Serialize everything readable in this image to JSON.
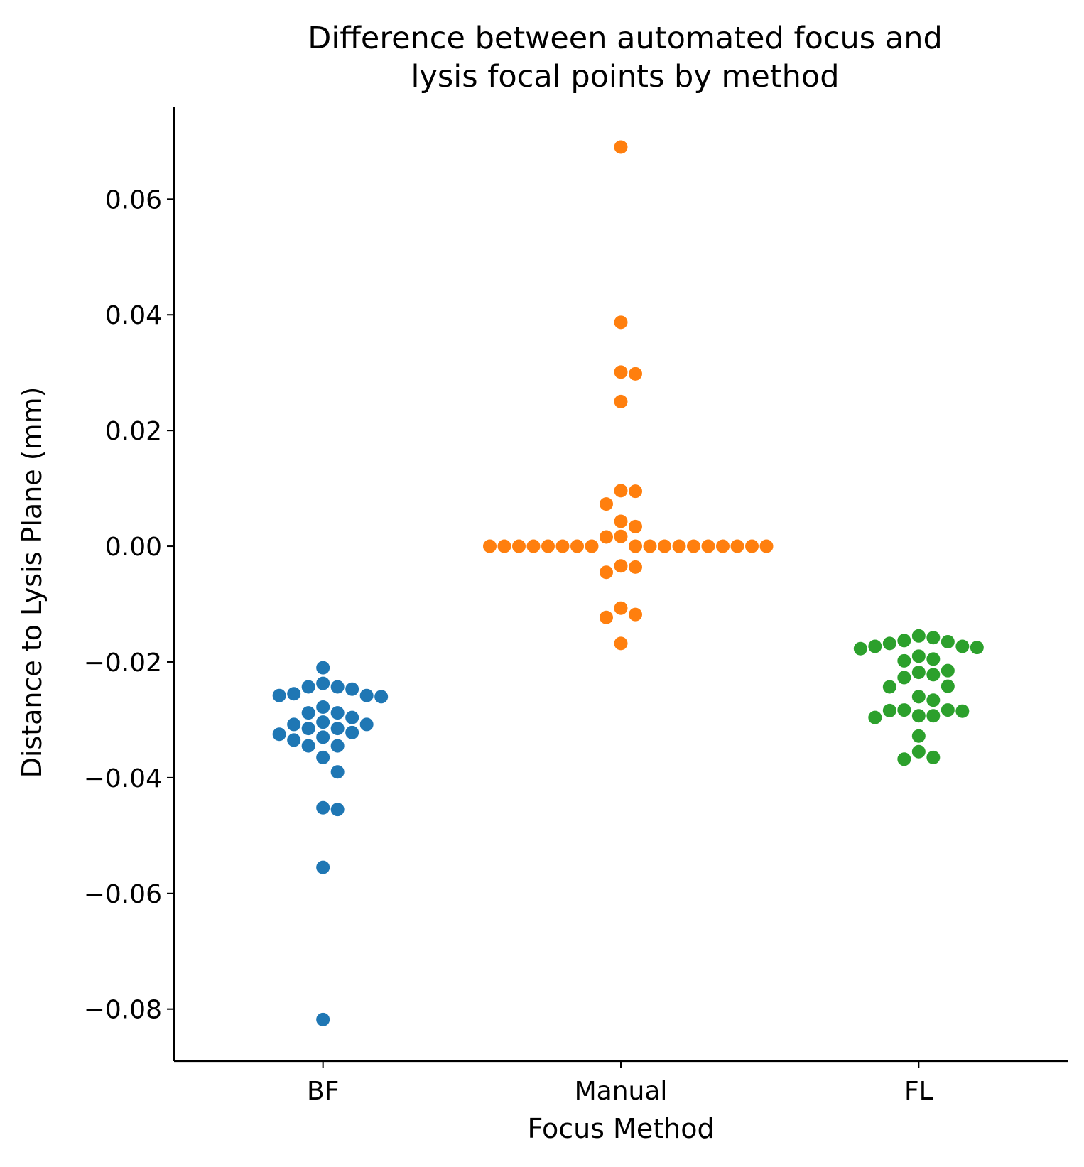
{
  "chart_data": {
    "type": "scatter",
    "style": "swarm",
    "title_lines": [
      "Difference between automated focus and",
      "lysis focal points by method"
    ],
    "xlabel": "Focus Method",
    "ylabel": "Distance to Lysis Plane (mm)",
    "categories": [
      "BF",
      "Manual",
      "FL"
    ],
    "ylim": [
      -0.089,
      0.076
    ],
    "yticks": [
      -0.08,
      -0.06,
      -0.04,
      -0.02,
      0.0,
      0.02,
      0.04,
      0.06
    ],
    "ytick_labels": [
      "−0.08",
      "−0.06",
      "−0.04",
      "−0.02",
      "0.00",
      "0.02",
      "0.04",
      "0.06"
    ],
    "grid": false,
    "legend": "none",
    "series": [
      {
        "category": "BF",
        "color": "#1f77b4",
        "values": [
          -0.021,
          -0.0237,
          -0.0243,
          -0.0243,
          -0.0247,
          -0.0255,
          -0.0258,
          -0.0258,
          -0.026,
          -0.0278,
          -0.0288,
          -0.0288,
          -0.0296,
          -0.0304,
          -0.0308,
          -0.0308,
          -0.0315,
          -0.0315,
          -0.0322,
          -0.0325,
          -0.033,
          -0.0335,
          -0.0345,
          -0.0345,
          -0.0365,
          -0.039,
          -0.0452,
          -0.0455,
          -0.0555,
          -0.0818
        ]
      },
      {
        "category": "Manual",
        "color": "#ff7f0e",
        "values": [
          0.069,
          0.0387,
          0.0301,
          0.0298,
          0.025,
          0.0096,
          0.0095,
          0.0073,
          0.0043,
          0.0034,
          0.0016,
          0.0017,
          0.0,
          0.0,
          0.0,
          0.0,
          0.0,
          0.0,
          0.0,
          0.0,
          0.0,
          0.0,
          0.0,
          0.0,
          0.0,
          0.0,
          0.0,
          0.0,
          0.0,
          0.0,
          -0.0034,
          -0.0036,
          -0.0045,
          -0.0107,
          -0.0118,
          -0.0123,
          -0.0168
        ]
      },
      {
        "category": "FL",
        "color": "#2ca02c",
        "values": [
          -0.0155,
          -0.0158,
          -0.0163,
          -0.0165,
          -0.0168,
          -0.0173,
          -0.0173,
          -0.0175,
          -0.0177,
          -0.019,
          -0.0195,
          -0.0198,
          -0.0215,
          -0.0218,
          -0.0222,
          -0.0227,
          -0.0242,
          -0.0243,
          -0.026,
          -0.0266,
          -0.0283,
          -0.0283,
          -0.0284,
          -0.0285,
          -0.0293,
          -0.0293,
          -0.0296,
          -0.0328,
          -0.0355,
          -0.0365,
          -0.0368
        ]
      }
    ]
  }
}
